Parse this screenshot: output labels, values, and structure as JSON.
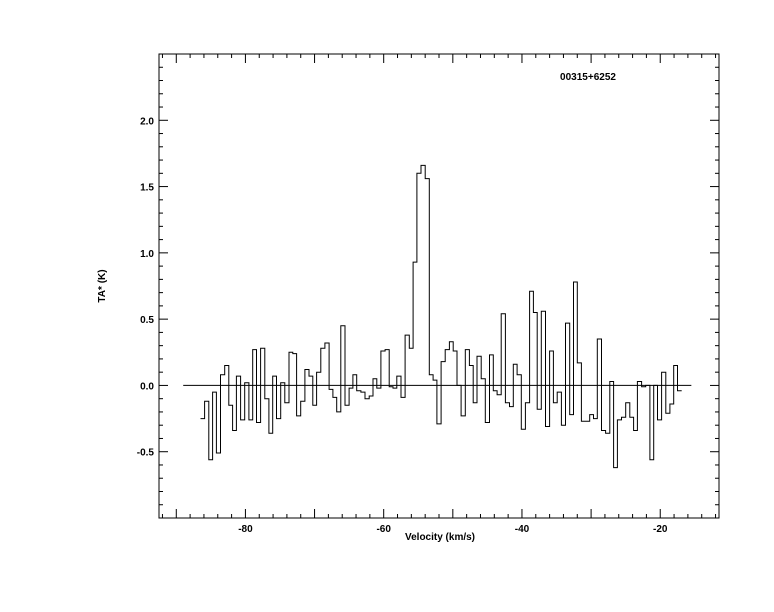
{
  "chart_data": {
    "type": "line",
    "style": "step",
    "title": "00315+6252",
    "xlabel": "Velocity (km/s)",
    "ylabel": "TA* (K)",
    "xlim": [
      -92.5,
      -11.5
    ],
    "ylim": [
      -1.0,
      2.5
    ],
    "xticks": [
      -80,
      -60,
      -40,
      -20
    ],
    "xtick_labels": [
      "-80",
      "-60",
      "-40",
      "-20"
    ],
    "yticks": [
      -0.5,
      0.0,
      0.5,
      1.0,
      1.5,
      2.0
    ],
    "ytick_labels": [
      "-0.5",
      "0.0",
      "0.5",
      "1.0",
      "1.5",
      "2.0"
    ],
    "baseline": 0.0,
    "baseline_range": [
      -89.0,
      -15.5
    ],
    "grid": false,
    "series": [
      {
        "x": [
          -86.2,
          -85.6,
          -85.0,
          -84.5,
          -83.9,
          -83.3,
          -82.7,
          -82.1,
          -81.6,
          -81.0,
          -80.4,
          -79.8,
          -79.2,
          -78.7,
          -78.1,
          -77.5,
          -76.9,
          -76.3,
          -75.8,
          -75.2,
          -74.6,
          -74.0,
          -73.4,
          -72.9,
          -72.3,
          -71.7,
          -71.1,
          -70.5,
          -70.0,
          -69.4,
          -68.8,
          -68.2,
          -67.6,
          -67.1,
          -66.5,
          -65.9,
          -65.3,
          -64.7,
          -64.2,
          -63.6,
          -63.0,
          -62.4,
          -61.8,
          -61.3,
          -60.7,
          -60.1,
          -59.5,
          -58.9,
          -58.4,
          -57.8,
          -57.2,
          -56.6,
          -56.0,
          -55.5,
          -54.9,
          -54.3,
          -53.7,
          -53.1,
          -52.6,
          -52.0,
          -51.4,
          -50.8,
          -50.2,
          -49.7,
          -49.1,
          -48.5,
          -47.9,
          -47.3,
          -46.8,
          -46.2,
          -45.6,
          -45.0,
          -44.4,
          -43.9,
          -43.3,
          -42.7,
          -42.1,
          -41.5,
          -41.0,
          -40.4,
          -39.8,
          -39.2,
          -38.6,
          -38.1,
          -37.5,
          -36.9,
          -36.3,
          -35.7,
          -35.2,
          -34.6,
          -34.0,
          -33.4,
          -32.8,
          -32.3,
          -31.7,
          -31.1,
          -30.5,
          -29.9,
          -29.4,
          -28.8,
          -28.2,
          -27.6,
          -27.0,
          -26.5,
          -25.9,
          -25.3,
          -24.7,
          -24.1,
          -23.6,
          -23.0,
          -22.4,
          -21.8,
          -21.2,
          -20.7,
          -20.1,
          -19.5,
          -18.9,
          -18.3,
          -17.8,
          -17.2
        ],
        "values": [
          -0.25,
          -0.12,
          -0.56,
          -0.05,
          -0.51,
          0.08,
          0.15,
          -0.15,
          -0.34,
          0.07,
          -0.26,
          0.02,
          -0.26,
          0.27,
          -0.28,
          0.28,
          -0.1,
          -0.36,
          0.07,
          -0.25,
          0.02,
          -0.13,
          0.25,
          0.24,
          -0.23,
          -0.12,
          0.12,
          0.07,
          -0.15,
          0.1,
          0.28,
          0.32,
          -0.03,
          -0.09,
          -0.2,
          0.45,
          -0.15,
          -0.02,
          0.08,
          -0.04,
          -0.05,
          -0.1,
          -0.08,
          0.05,
          -0.02,
          0.26,
          0.27,
          -0.01,
          -0.02,
          0.07,
          -0.09,
          0.38,
          0.28,
          0.93,
          1.6,
          1.66,
          1.56,
          0.08,
          0.04,
          -0.29,
          0.18,
          0.27,
          0.33,
          0.26,
          0.0,
          -0.23,
          0.27,
          0.15,
          -0.13,
          0.22,
          0.05,
          -0.28,
          0.23,
          -0.04,
          -0.07,
          0.54,
          -0.13,
          -0.16,
          0.16,
          0.08,
          -0.33,
          -0.13,
          0.71,
          0.55,
          -0.18,
          0.56,
          -0.31,
          0.26,
          -0.13,
          -0.05,
          -0.3,
          0.47,
          -0.22,
          0.78,
          0.17,
          -0.27,
          -0.27,
          -0.22,
          -0.25,
          0.35,
          -0.34,
          -0.36,
          0.03,
          -0.62,
          -0.26,
          -0.24,
          -0.13,
          -0.24,
          -0.34,
          0.03,
          -0.01,
          0.0,
          -0.56,
          0.0,
          -0.26,
          0.1,
          -0.21,
          -0.14,
          0.15,
          -0.04
        ]
      }
    ]
  }
}
